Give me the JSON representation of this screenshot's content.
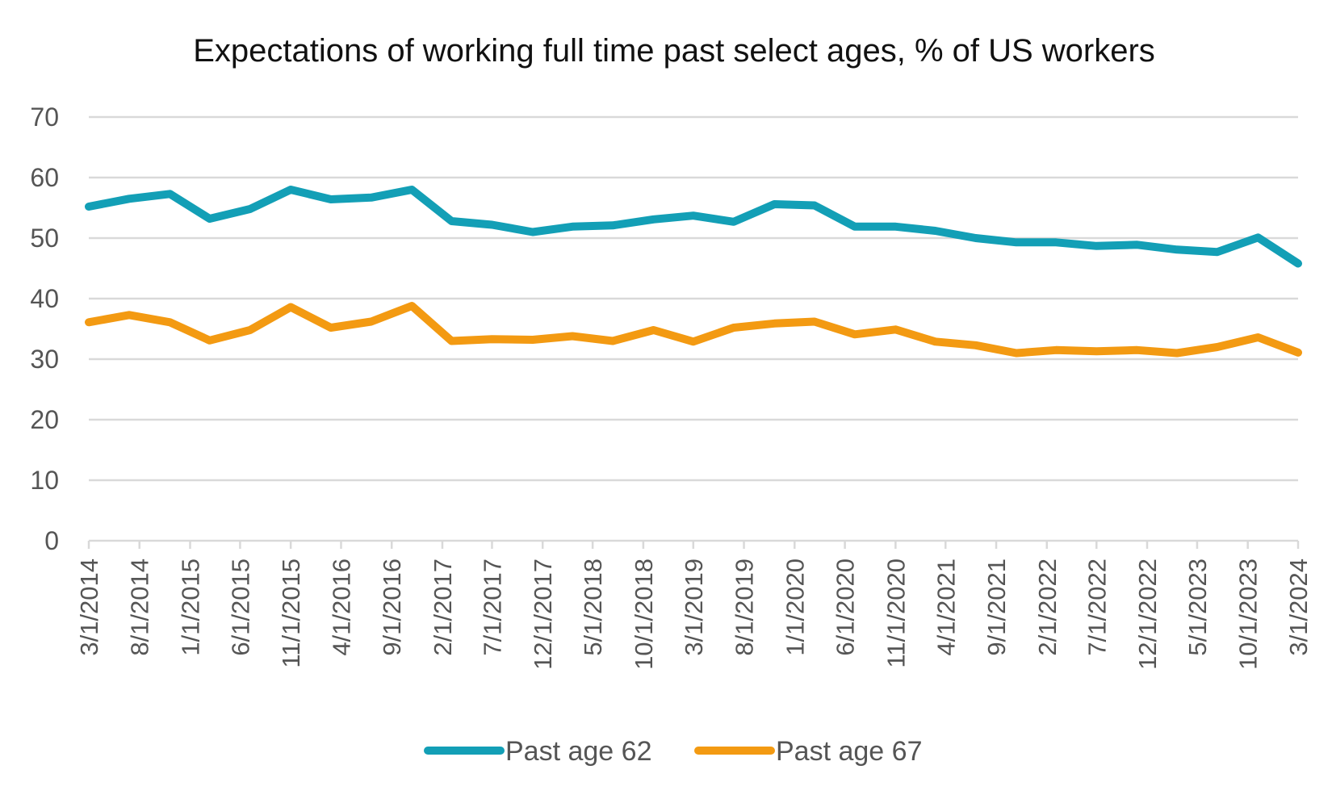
{
  "chart_data": {
    "type": "line",
    "title": "Expectations of working full time past select ages, % of US workers",
    "xlabel": "",
    "ylabel": "",
    "ylim": [
      0,
      70
    ],
    "yticks": [
      0,
      10,
      20,
      30,
      40,
      50,
      60,
      70
    ],
    "grid": true,
    "legend_position": "bottom",
    "x_tick_labels": [
      "3/1/2014",
      "8/1/2014",
      "1/1/2015",
      "6/1/2015",
      "11/1/2015",
      "4/1/2016",
      "9/1/2016",
      "2/1/2017",
      "7/1/2017",
      "12/1/2017",
      "5/1/2018",
      "10/1/2018",
      "3/1/2019",
      "8/1/2019",
      "1/1/2020",
      "6/1/2020",
      "11/1/2020",
      "4/1/2021",
      "9/1/2021",
      "2/1/2022",
      "7/1/2022",
      "12/1/2022",
      "5/1/2023",
      "10/1/2023",
      "3/1/2024"
    ],
    "x": [
      "2014-03-01",
      "2014-07-01",
      "2014-11-01",
      "2015-03-01",
      "2015-07-01",
      "2015-11-01",
      "2016-03-01",
      "2016-07-01",
      "2016-11-01",
      "2017-03-01",
      "2017-07-01",
      "2017-11-01",
      "2018-03-01",
      "2018-07-01",
      "2018-11-01",
      "2019-03-01",
      "2019-07-01",
      "2019-11-01",
      "2020-03-01",
      "2020-07-01",
      "2020-11-01",
      "2021-03-01",
      "2021-07-01",
      "2021-11-01",
      "2022-03-01",
      "2022-07-01",
      "2022-11-01",
      "2023-03-01",
      "2023-07-01",
      "2023-11-01",
      "2024-03-01"
    ],
    "series": [
      {
        "name": "Past age 62",
        "color": "#139fb6",
        "values": [
          55.2,
          56.5,
          57.3,
          53.2,
          54.8,
          58.0,
          56.4,
          56.7,
          58.0,
          52.8,
          52.2,
          51.0,
          51.9,
          52.1,
          53.1,
          53.7,
          52.7,
          55.6,
          55.4,
          51.9,
          51.9,
          51.2,
          50.0,
          49.3,
          49.3,
          48.7,
          48.9,
          48.1,
          47.7,
          50.1,
          45.8
        ]
      },
      {
        "name": "Past age 67",
        "color": "#f39a12",
        "values": [
          36.1,
          37.3,
          36.1,
          33.1,
          34.8,
          38.6,
          35.2,
          36.2,
          38.8,
          33.0,
          33.3,
          33.2,
          33.8,
          33.0,
          34.8,
          32.9,
          35.2,
          35.9,
          36.2,
          34.1,
          34.9,
          32.9,
          32.3,
          31.0,
          31.5,
          31.3,
          31.5,
          31.0,
          32.0,
          33.6,
          31.1
        ]
      }
    ]
  }
}
